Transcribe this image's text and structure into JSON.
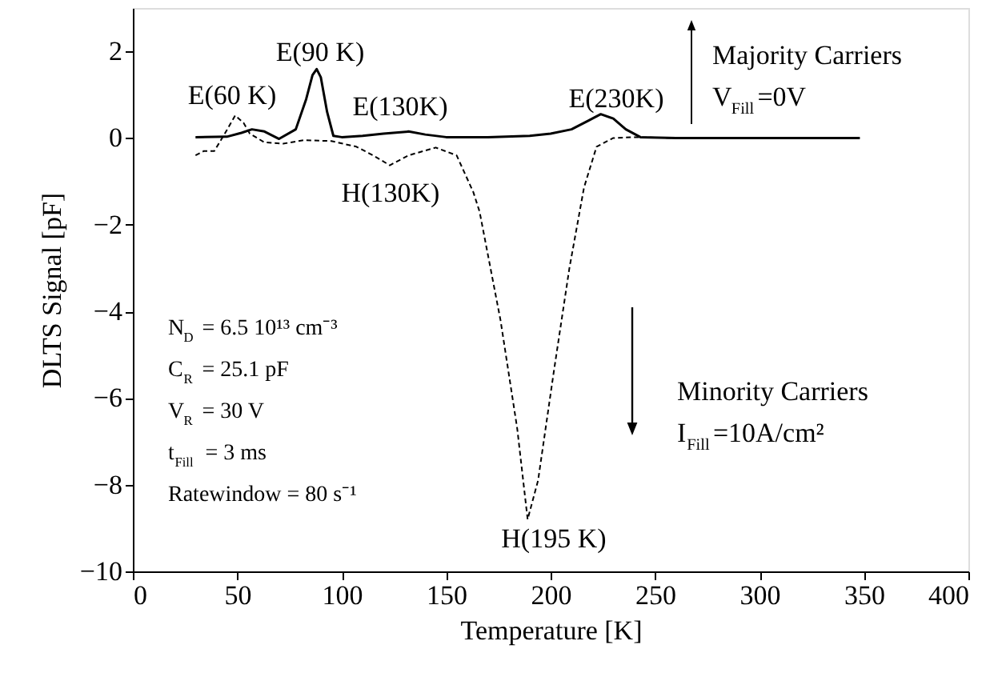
{
  "chart_data": {
    "type": "line",
    "xlabel": "Temperature [K]",
    "ylabel": "DLTS Signal [pF]",
    "xlim": [
      0,
      400
    ],
    "xticks": [
      0,
      50,
      100,
      150,
      200,
      250,
      300,
      350,
      400
    ],
    "ylim": [
      -10,
      3
    ],
    "yticks": [
      -10,
      -8,
      -6,
      -4,
      -2,
      0,
      2
    ],
    "grid": false,
    "marker": "none",
    "series": [
      {
        "color": "#000000",
        "line_style": "solid",
        "x": [
          30,
          45,
          52,
          57,
          63,
          70,
          78,
          83,
          86,
          88,
          90,
          93,
          96,
          100,
          110,
          120,
          132,
          140,
          150,
          170,
          190,
          200,
          210,
          218,
          224,
          230,
          236,
          243,
          260,
          300,
          348
        ],
        "values": [
          0.02,
          0.03,
          0.12,
          0.2,
          0.15,
          -0.02,
          0.2,
          0.9,
          1.45,
          1.59,
          1.4,
          0.6,
          0.05,
          0.02,
          0.05,
          0.1,
          0.15,
          0.08,
          0.02,
          0.02,
          0.05,
          0.1,
          0.2,
          0.4,
          0.55,
          0.45,
          0.2,
          0.02,
          0.0,
          0.0,
          0.0
        ]
      },
      {
        "color": "#000000",
        "line_style": "dashed",
        "x": [
          30,
          34,
          39,
          44,
          49,
          53,
          56,
          63,
          72,
          82,
          95,
          107,
          115,
          123,
          132,
          145,
          155,
          163,
          166,
          176,
          184,
          189,
          194,
          201.5,
          209,
          216,
          222,
          230,
          240,
          260,
          300,
          348
        ],
        "values": [
          -0.4,
          -0.3,
          -0.3,
          0.1,
          0.52,
          0.35,
          0.1,
          -0.1,
          -0.13,
          -0.05,
          -0.07,
          -0.2,
          -0.4,
          -0.63,
          -0.4,
          -0.22,
          -0.4,
          -1.25,
          -1.7,
          -4.2,
          -6.7,
          -8.8,
          -7.9,
          -5.4,
          -3.0,
          -1.14,
          -0.2,
          0.0,
          0.02,
          0.0,
          0.0,
          0.0
        ]
      }
    ],
    "annotations": [
      "E(60 K)",
      "E(90 K)",
      "E(130K)",
      "E(230K)",
      "H(130K)",
      "H(195 K)",
      "Majority Carriers",
      "V$_{Fill}$=0V",
      "Minority Carriers",
      "I$_{Fill}$=10A/cm²",
      "N$_{D}$ = 6.5 10¹³ cm⁻³",
      "C$_{R}$ = 25.1 pF",
      "V$_{R}$ = 30 V",
      "t$_{Fill}$ = 3 ms",
      "Ratewindow = 80 s⁻¹"
    ]
  }
}
